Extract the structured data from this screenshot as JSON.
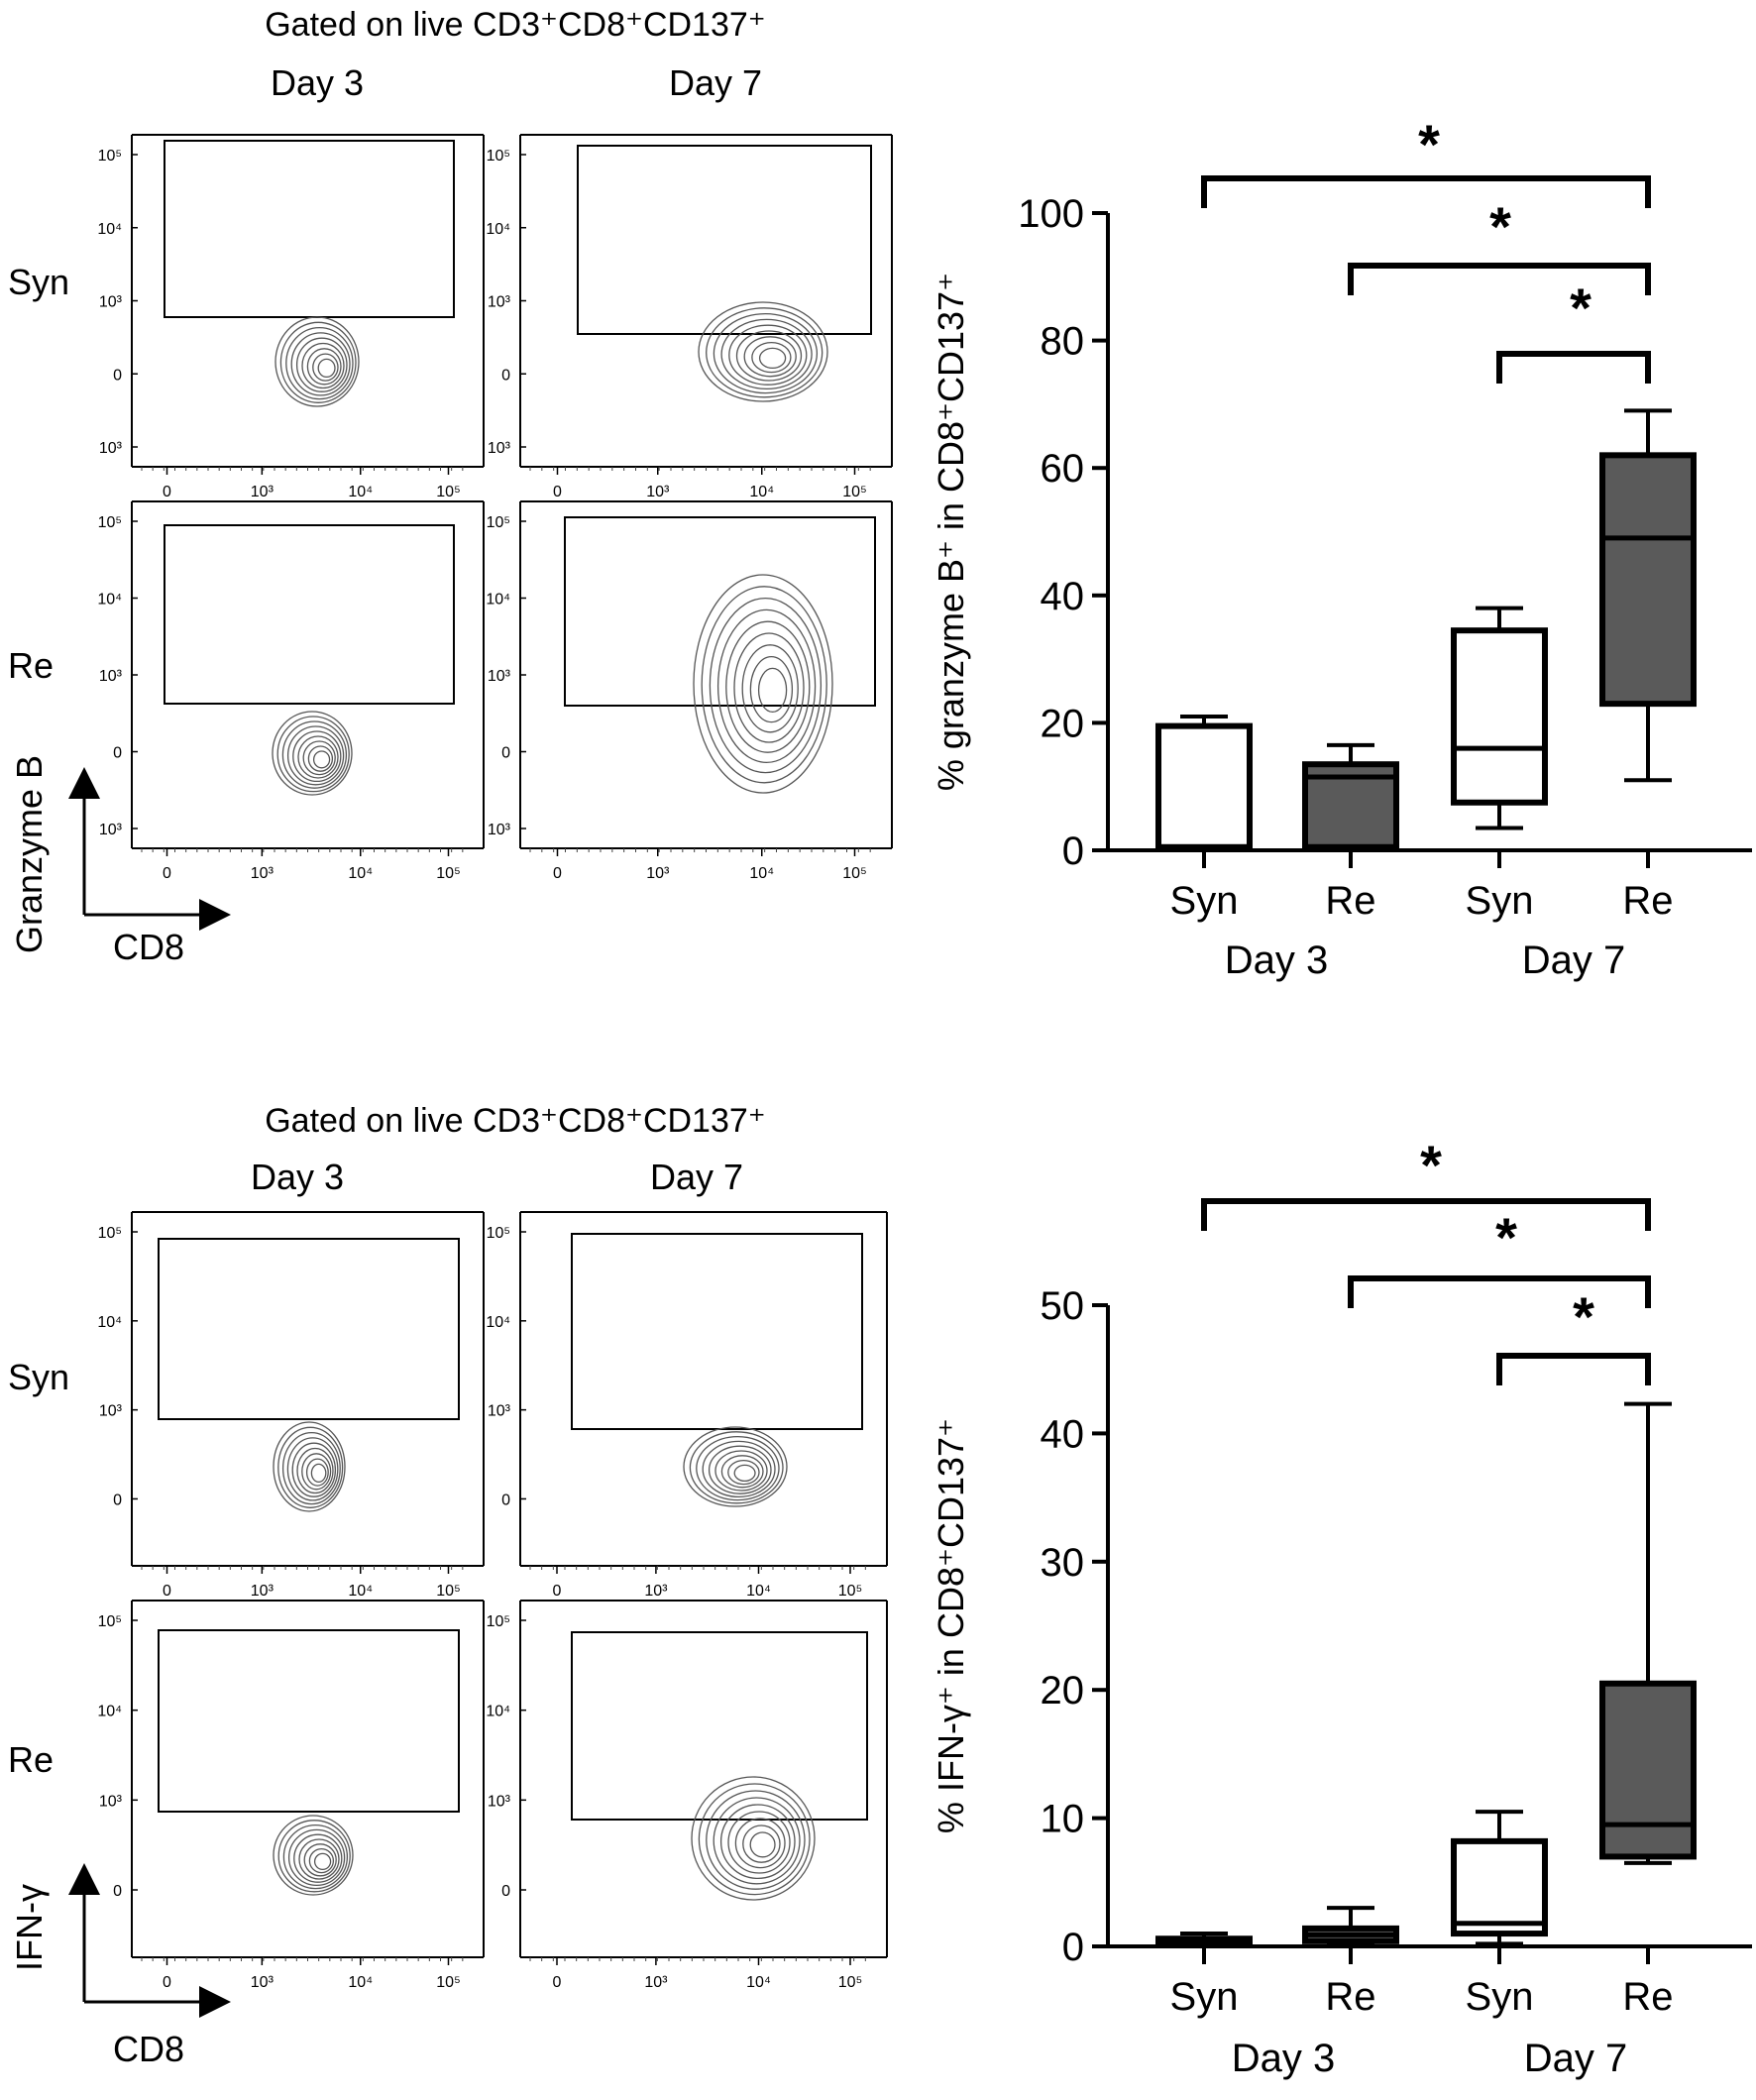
{
  "flow_panels": [
    {
      "title": "Gated on live CD3⁺CD8⁺CD137⁺",
      "day_labels": [
        "Day 3",
        "Day 7"
      ],
      "row_labels": [
        "Syn",
        "Re"
      ],
      "y_axis_label": "Granzyme B",
      "x_axis_label": "CD8",
      "y_ticks": [
        "10⁵",
        "10⁴",
        "10³",
        "0",
        "10³"
      ],
      "x_ticks": [
        "0",
        "10³",
        "10⁴",
        "10⁵"
      ]
    },
    {
      "title": "Gated on live CD3⁺CD8⁺CD137⁺",
      "day_labels": [
        "Day 3",
        "Day 7"
      ],
      "row_labels": [
        "Syn",
        "Re"
      ],
      "y_axis_label": "IFN-γ",
      "x_axis_label": "CD8",
      "y_ticks": [
        "10⁵",
        "10⁴",
        "10³",
        "0"
      ],
      "x_ticks": [
        "0",
        "10³",
        "10⁴",
        "10⁵"
      ]
    }
  ],
  "chart_data": [
    {
      "type": "boxplot",
      "ylabel": "% granzyme B⁺ in CD8⁺CD137⁺",
      "ylim": [
        0,
        100
      ],
      "yticks": [
        0,
        20,
        40,
        60,
        80,
        100
      ],
      "groups": [
        "Day 3",
        "Day 7"
      ],
      "significance_marker": "*",
      "boxes": [
        {
          "label": "Syn",
          "group": "Day 3",
          "min": 0.5,
          "q1": 0.5,
          "median": 0.5,
          "q3": 19.5,
          "max": 21,
          "fill": "#ffffff"
        },
        {
          "label": "Re",
          "group": "Day 3",
          "min": 0.5,
          "q1": 0.5,
          "median": 11.5,
          "q3": 13.5,
          "max": 16.5,
          "fill": "#5a5a5a"
        },
        {
          "label": "Syn",
          "group": "Day 7",
          "min": 3.5,
          "q1": 7.5,
          "median": 16,
          "q3": 34.5,
          "max": 38,
          "fill": "#ffffff"
        },
        {
          "label": "Re",
          "group": "Day 7",
          "min": 11,
          "q1": 23,
          "median": 49,
          "q3": 62,
          "max": 69,
          "fill": "#5a5a5a"
        }
      ],
      "comparisons": [
        {
          "from": 0,
          "to": 3,
          "label": "*"
        },
        {
          "from": 1,
          "to": 3,
          "label": "*"
        },
        {
          "from": 2,
          "to": 3,
          "label": "*"
        }
      ]
    },
    {
      "type": "boxplot",
      "ylabel": "% IFN-γ⁺ in CD8⁺CD137⁺",
      "ylim": [
        0,
        50
      ],
      "yticks": [
        0,
        10,
        20,
        30,
        40,
        50
      ],
      "groups": [
        "Day 3",
        "Day 7"
      ],
      "significance_marker": "*",
      "boxes": [
        {
          "label": "Syn",
          "group": "Day 3",
          "min": 0.2,
          "q1": 0.2,
          "median": 0.4,
          "q3": 0.6,
          "max": 1.0,
          "fill": "#ffffff"
        },
        {
          "label": "Re",
          "group": "Day 3",
          "min": 0.3,
          "q1": 0.4,
          "median": 0.9,
          "q3": 1.4,
          "max": 3.0,
          "fill": "#5a5a5a"
        },
        {
          "label": "Syn",
          "group": "Day 7",
          "min": 0.2,
          "q1": 1.0,
          "median": 1.8,
          "q3": 8.2,
          "max": 10.5,
          "fill": "#ffffff"
        },
        {
          "label": "Re",
          "group": "Day 7",
          "min": 6.5,
          "q1": 7.0,
          "median": 9.5,
          "q3": 20.5,
          "max": 42.3,
          "fill": "#5a5a5a"
        }
      ],
      "comparisons": [
        {
          "from": 0,
          "to": 3,
          "label": "*"
        },
        {
          "from": 1,
          "to": 3,
          "label": "*"
        },
        {
          "from": 2,
          "to": 3,
          "label": "*"
        }
      ]
    }
  ]
}
